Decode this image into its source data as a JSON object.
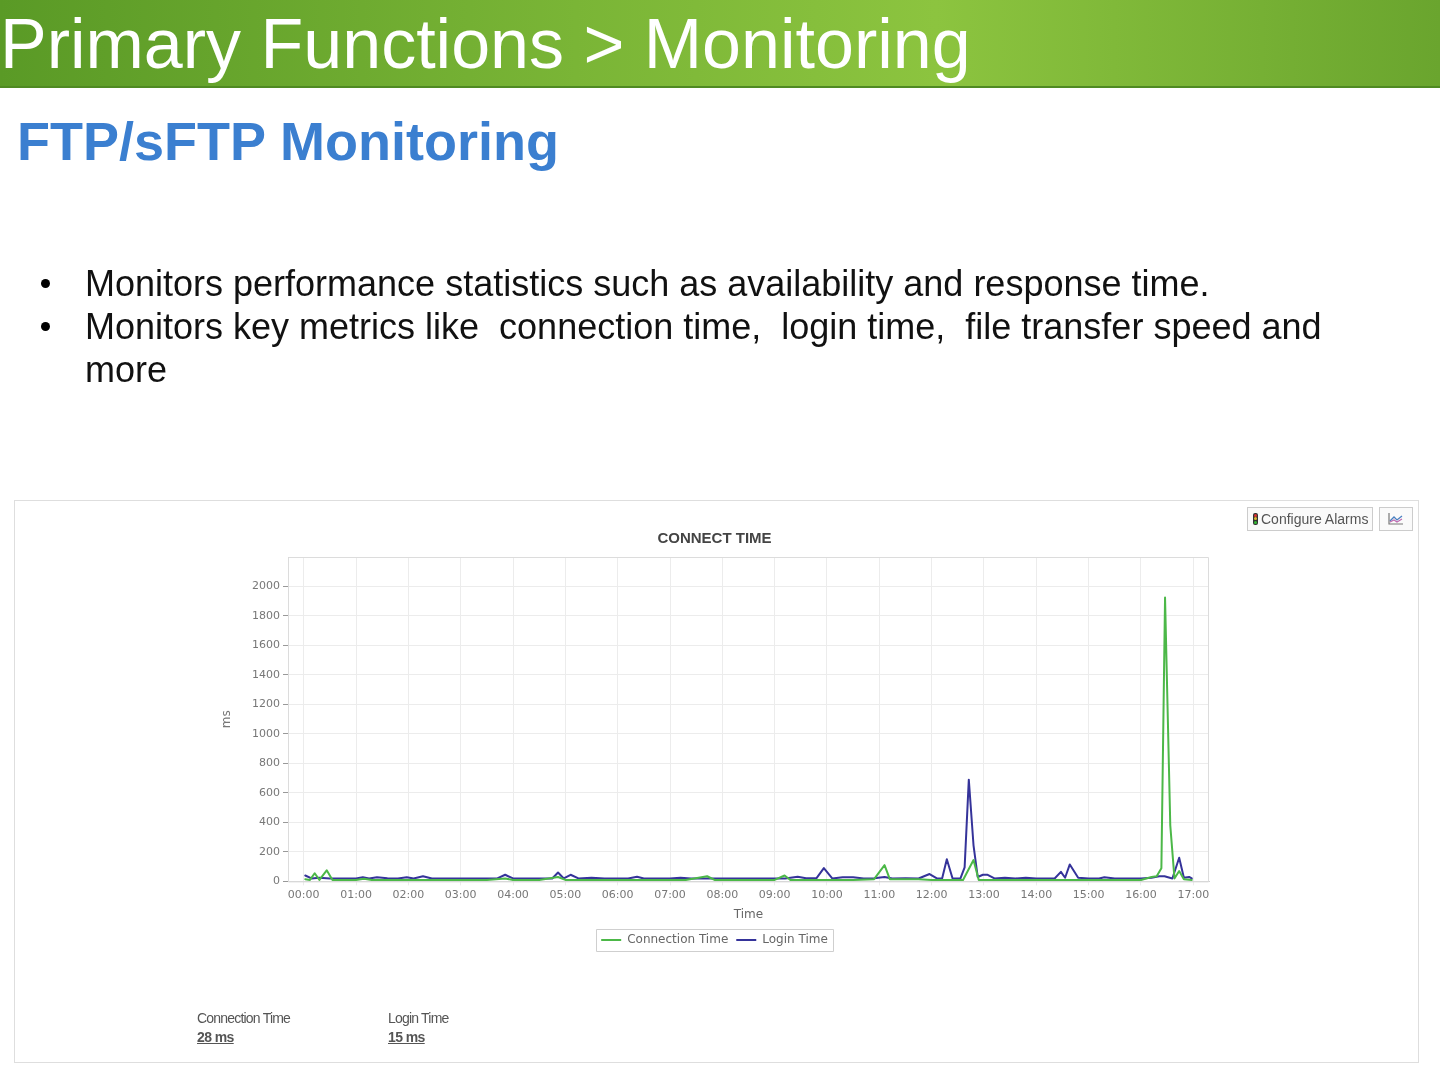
{
  "chart_data": {
    "type": "line",
    "title": "CONNECT TIME",
    "xlabel": "Time",
    "ylabel": "ms",
    "xlim": [
      -0.3,
      17.3
    ],
    "xticks": [
      {
        "value": 0,
        "label": "00:00"
      },
      {
        "value": 1,
        "label": "01:00"
      },
      {
        "value": 2,
        "label": "02:00"
      },
      {
        "value": 3,
        "label": "03:00"
      },
      {
        "value": 4,
        "label": "04:00"
      },
      {
        "value": 5,
        "label": "05:00"
      },
      {
        "value": 6,
        "label": "06:00"
      },
      {
        "value": 7,
        "label": "07:00"
      },
      {
        "value": 8,
        "label": "08:00"
      },
      {
        "value": 9,
        "label": "09:00"
      },
      {
        "value": 10,
        "label": "10:00"
      },
      {
        "value": 11,
        "label": "11:00"
      },
      {
        "value": 12,
        "label": "12:00"
      },
      {
        "value": 13,
        "label": "13:00"
      },
      {
        "value": 14,
        "label": "14:00"
      },
      {
        "value": 15,
        "label": "15:00"
      },
      {
        "value": 16,
        "label": "16:00"
      },
      {
        "value": 17,
        "label": "17:00"
      }
    ],
    "ylim": [
      0,
      2200
    ],
    "yticks": [
      0,
      200,
      400,
      600,
      800,
      1000,
      1200,
      1400,
      1600,
      1800,
      2000
    ],
    "series": [
      {
        "name": "Connection Time",
        "color": "#4cb848",
        "x": [
          0.03,
          0.12,
          0.21,
          0.3,
          0.44,
          0.55,
          0.75,
          1.0,
          1.15,
          1.3,
          1.5,
          2.0,
          2.5,
          3.0,
          3.5,
          3.85,
          4.0,
          4.5,
          4.86,
          5.0,
          5.5,
          6.0,
          6.5,
          7.0,
          7.3,
          7.71,
          7.85,
          8.0,
          8.5,
          9.0,
          9.19,
          9.3,
          9.5,
          10.0,
          10.5,
          10.9,
          11.1,
          11.2,
          11.5,
          11.75,
          12.0,
          12.3,
          12.6,
          12.8,
          12.9,
          13.2,
          13.5,
          14.0,
          14.5,
          15.0,
          15.5,
          16.0,
          16.2,
          16.3,
          16.39,
          16.46,
          16.56,
          16.64,
          16.73,
          16.82,
          16.97
        ],
        "values": [
          15,
          10,
          55,
          10,
          75,
          10,
          10,
          10,
          18,
          10,
          10,
          10,
          10,
          10,
          10,
          20,
          10,
          10,
          30,
          10,
          10,
          10,
          10,
          10,
          10,
          35,
          10,
          10,
          10,
          10,
          40,
          10,
          10,
          10,
          10,
          15,
          110,
          15,
          15,
          15,
          10,
          10,
          10,
          145,
          10,
          10,
          10,
          10,
          10,
          10,
          10,
          10,
          30,
          35,
          90,
          1925,
          380,
          20,
          70,
          15,
          10
        ]
      },
      {
        "name": "Login Time",
        "color": "#35339a",
        "x": [
          0.03,
          0.15,
          0.3,
          0.5,
          0.75,
          1.0,
          1.13,
          1.25,
          1.4,
          1.6,
          1.8,
          1.97,
          2.1,
          2.28,
          2.45,
          2.75,
          3.0,
          3.25,
          3.5,
          3.7,
          3.85,
          4.0,
          4.25,
          4.5,
          4.75,
          4.86,
          4.97,
          5.1,
          5.25,
          5.5,
          5.75,
          6.0,
          6.2,
          6.37,
          6.5,
          6.75,
          7.0,
          7.2,
          7.4,
          7.7,
          8.0,
          8.25,
          8.5,
          8.75,
          9.0,
          9.2,
          9.44,
          9.6,
          9.8,
          9.94,
          10.1,
          10.3,
          10.5,
          10.7,
          10.9,
          11.1,
          11.25,
          11.5,
          11.75,
          11.96,
          12.1,
          12.2,
          12.29,
          12.4,
          12.55,
          12.63,
          12.71,
          12.8,
          12.88,
          12.98,
          13.07,
          13.2,
          13.4,
          13.6,
          13.8,
          14.0,
          14.2,
          14.35,
          14.47,
          14.55,
          14.64,
          14.8,
          15.0,
          15.2,
          15.3,
          15.5,
          15.75,
          16.0,
          16.2,
          16.35,
          16.45,
          16.6,
          16.73,
          16.82,
          16.92,
          16.97
        ],
        "values": [
          40,
          20,
          25,
          20,
          20,
          20,
          28,
          20,
          28,
          22,
          20,
          28,
          20,
          35,
          20,
          20,
          20,
          20,
          20,
          20,
          45,
          20,
          20,
          20,
          20,
          60,
          20,
          45,
          20,
          25,
          20,
          20,
          20,
          32,
          20,
          20,
          20,
          25,
          20,
          20,
          20,
          20,
          20,
          20,
          20,
          20,
          32,
          22,
          22,
          90,
          20,
          28,
          28,
          20,
          22,
          30,
          20,
          22,
          20,
          50,
          20,
          20,
          150,
          20,
          20,
          95,
          690,
          245,
          30,
          45,
          45,
          20,
          25,
          20,
          25,
          20,
          20,
          20,
          65,
          25,
          115,
          25,
          20,
          20,
          28,
          20,
          20,
          20,
          25,
          35,
          35,
          20,
          160,
          25,
          30,
          20
        ]
      }
    ],
    "grid": true,
    "legend": "bottom",
    "annotations": [
      "Primary Functions > Monitoring",
      "FTP/sFTP Monitoring",
      "Monitors performance statistics such as availability and response time.",
      "Monitors key metrics like  connection time,  login time,  file transfer speed and more",
      "Configure Alarms",
      "Connection Time",
      "28 ms",
      "Login Time",
      "15 ms"
    ]
  }
}
